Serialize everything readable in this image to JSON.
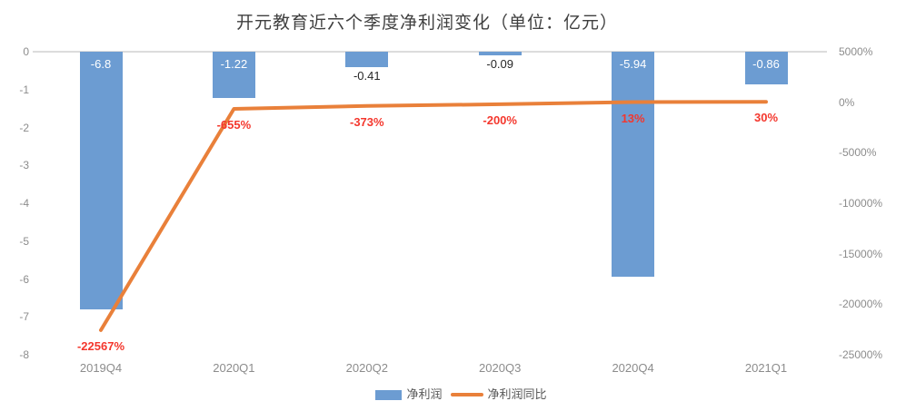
{
  "title": "开元教育近六个季度净利润变化（单位：亿元）",
  "chart_data": {
    "type": "combo-bar-line",
    "title": "开元教育近六个季度净利润变化（单位：亿元）",
    "categories": [
      "2019Q4",
      "2020Q1",
      "2020Q2",
      "2020Q3",
      "2020Q4",
      "2021Q1"
    ],
    "series": [
      {
        "name": "净利润",
        "type": "bar",
        "axis": "left",
        "values": [
          -6.8,
          -1.22,
          -0.41,
          -0.09,
          -5.94,
          -0.86
        ],
        "labels": [
          "-6.8",
          "-1.22",
          "-0.41",
          "-0.09",
          "-5.94",
          "-0.86"
        ]
      },
      {
        "name": "净利润同比",
        "type": "line",
        "axis": "right",
        "values": [
          -22567,
          -655,
          -373,
          -200,
          13,
          30
        ],
        "labels": [
          "-22567%",
          "-655%",
          "-373%",
          "-200%",
          "13%",
          "30%"
        ]
      }
    ],
    "left_axis": {
      "min": -8,
      "max": 0,
      "ticks": [
        "0",
        "-1",
        "-2",
        "-3",
        "-4",
        "-5",
        "-6",
        "-7",
        "-8"
      ]
    },
    "right_axis": {
      "min": -25000,
      "max": 5000,
      "ticks": [
        "5000%",
        "0%",
        "-5000%",
        "-10000%",
        "-15000%",
        "-20000%",
        "-25000%"
      ]
    },
    "legend_position": "bottom",
    "grid": "top-zero-line-only",
    "colors": {
      "bar": "#6c9cd2",
      "line": "#e9803a",
      "line_label": "#f4372d",
      "bar_label_inside": "#ffffff",
      "bar_label_outside": "#262626",
      "axis_text": "#8c8c8c",
      "title_text": "#3f3f3f",
      "legend_text": "#595959",
      "gridline": "#dcdcdc"
    }
  }
}
